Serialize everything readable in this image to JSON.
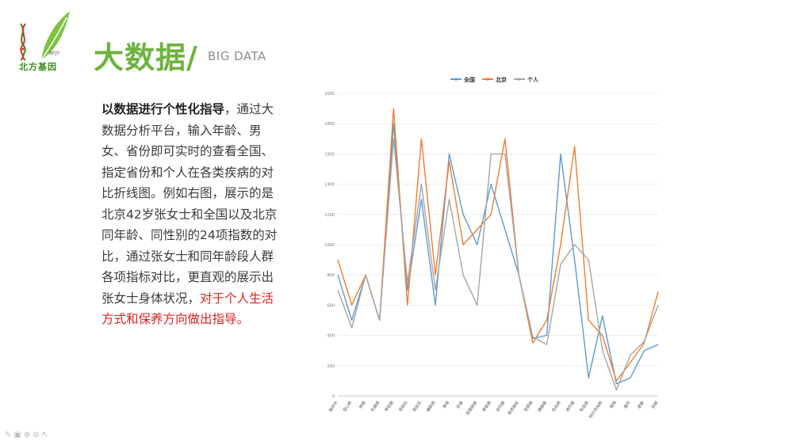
{
  "brand": {
    "name": "北方基因",
    "mark": "BFJY"
  },
  "page": {
    "title": "大数据",
    "slash": "/",
    "subtitle": "BIG DATA"
  },
  "text": {
    "lead": "以数据进行个性化指导",
    "middle": "，通过大数据分析平台，输入年龄、男女、省份即可实时的查看全国、指定省份和个人在各类疾病的对比折线图。例如右图，展示的是北京42岁张女士和全国以及北京同年龄、同性别的24项指数的对比，通过张女士和同年龄段人群各项指标对比，更直观的展示出张女士身体状况，",
    "highlight": "对于个人生活方式和保养方向做出指导。"
  },
  "colors": {
    "accent": "#6db33f",
    "series": [
      "#5b9bd5",
      "#ed7d31",
      "#a5a5a5"
    ],
    "highlight": "#e02020"
  },
  "icons": [
    "pen-icon",
    "image-icon",
    "zoom-icon",
    "link-icon",
    "pointer-icon"
  ],
  "chart_data": {
    "type": "line",
    "ylim": [
      0,
      2000
    ],
    "yticks": [
      "0",
      "200",
      "400",
      "600",
      "800",
      "1000",
      "1200",
      "1400",
      "1600",
      "1800",
      "2000"
    ],
    "categories": [
      "脑卒中",
      "冠心病",
      "肺癌",
      "乳腺癌",
      "甲状腺",
      "肾结石",
      "高血压",
      "糖尿病",
      "胃癌",
      "肝癌",
      "结直肠癌",
      "食管癌",
      "前列腺",
      "骨质疏松",
      "宫颈癌",
      "胰腺癌",
      "白血病",
      "淋巴瘤",
      "帕金森",
      "阿尔茨海默",
      "哮喘",
      "痛风",
      "肥胖",
      "抑郁"
    ],
    "series": [
      {
        "name": "全国",
        "values": [
          800,
          500,
          800,
          500,
          1800,
          700,
          1300,
          600,
          1600,
          1200,
          1000,
          1400,
          1100,
          800,
          380,
          400,
          1600,
          900,
          120,
          530,
          80,
          120,
          300,
          340
        ]
      },
      {
        "name": "北京",
        "values": [
          900,
          600,
          800,
          500,
          1900,
          600,
          1700,
          800,
          1550,
          1000,
          1100,
          1200,
          1700,
          800,
          350,
          500,
          1000,
          1650,
          500,
          400,
          100,
          220,
          350,
          690
        ]
      },
      {
        "name": "个人",
        "values": [
          700,
          450,
          800,
          500,
          1700,
          750,
          1400,
          700,
          1300,
          800,
          600,
          1600,
          1600,
          800,
          390,
          340,
          870,
          1000,
          900,
          300,
          40,
          270,
          360,
          600
        ]
      }
    ]
  }
}
